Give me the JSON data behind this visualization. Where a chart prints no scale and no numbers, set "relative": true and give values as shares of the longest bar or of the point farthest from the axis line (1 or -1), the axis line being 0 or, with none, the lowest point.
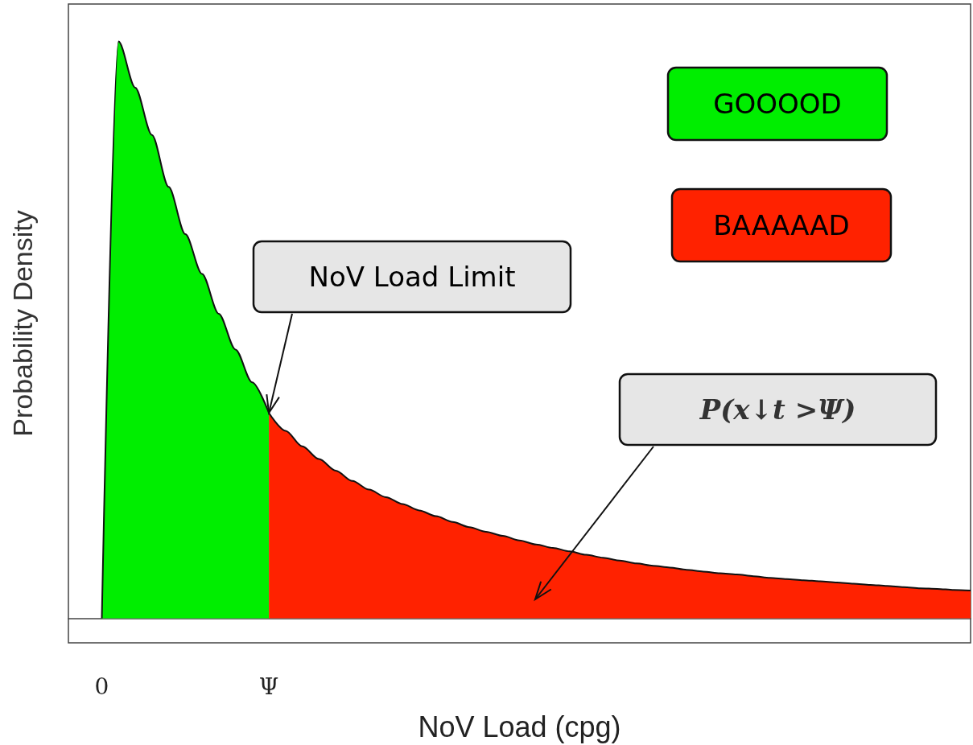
{
  "chart_data": {
    "type": "area",
    "relative": true,
    "xlabel": "NoV Load (cpg)",
    "ylabel": "Probability Density",
    "categories": [
      null,
      null,
      "0",
      null,
      null,
      null,
      null,
      null,
      null,
      null,
      null,
      null,
      "Ψ",
      null,
      null,
      null,
      null,
      null,
      null,
      null,
      null,
      null,
      null,
      null,
      null,
      null,
      null,
      null,
      null,
      null,
      null,
      null,
      null,
      null,
      null,
      null,
      null,
      null,
      null,
      null,
      null,
      null,
      null,
      null,
      null,
      null,
      null,
      null,
      null,
      null,
      null,
      null,
      null,
      null,
      null
    ],
    "series": [
      {
        "name": "GOOOOD",
        "color": "#00ee00",
        "values": [
          null,
          null,
          0,
          1,
          0.92,
          0.838,
          0.748,
          0.666,
          0.597,
          0.528,
          0.466,
          0.409,
          0.356,
          null,
          null,
          null,
          null,
          null,
          null,
          null,
          null,
          null,
          null,
          null,
          null,
          null,
          null,
          null,
          null,
          null,
          null,
          null,
          null,
          null,
          null,
          null,
          null,
          null,
          null,
          null,
          null,
          null,
          null,
          null,
          null,
          null,
          null,
          null,
          null,
          null,
          null,
          null,
          null,
          null,
          null
        ]
      },
      {
        "name": "BAAAAAD",
        "color": "#ff2200",
        "values": [
          null,
          null,
          null,
          null,
          null,
          null,
          null,
          null,
          null,
          null,
          null,
          null,
          0.356,
          0.325,
          0.298,
          0.276,
          0.256,
          0.238,
          0.223,
          0.21,
          0.198,
          0.187,
          0.177,
          0.167,
          0.158,
          0.15,
          0.143,
          0.135,
          0.128,
          0.122,
          0.116,
          0.11,
          0.105,
          0.1,
          0.095,
          0.091,
          0.088,
          0.084,
          0.081,
          0.078,
          0.076,
          0.073,
          0.07,
          0.068,
          0.066,
          0.064,
          0.062,
          0.06,
          0.058,
          0.056,
          0.054,
          0.052,
          0.051,
          0.049,
          0.048
        ]
      }
    ],
    "legend": "top right",
    "grid": false,
    "annotations": [
      {
        "text": "NoV Load Limit",
        "x": "Ψ",
        "y": 0.356
      },
      "P(x↓t >Ψ)"
    ]
  }
}
